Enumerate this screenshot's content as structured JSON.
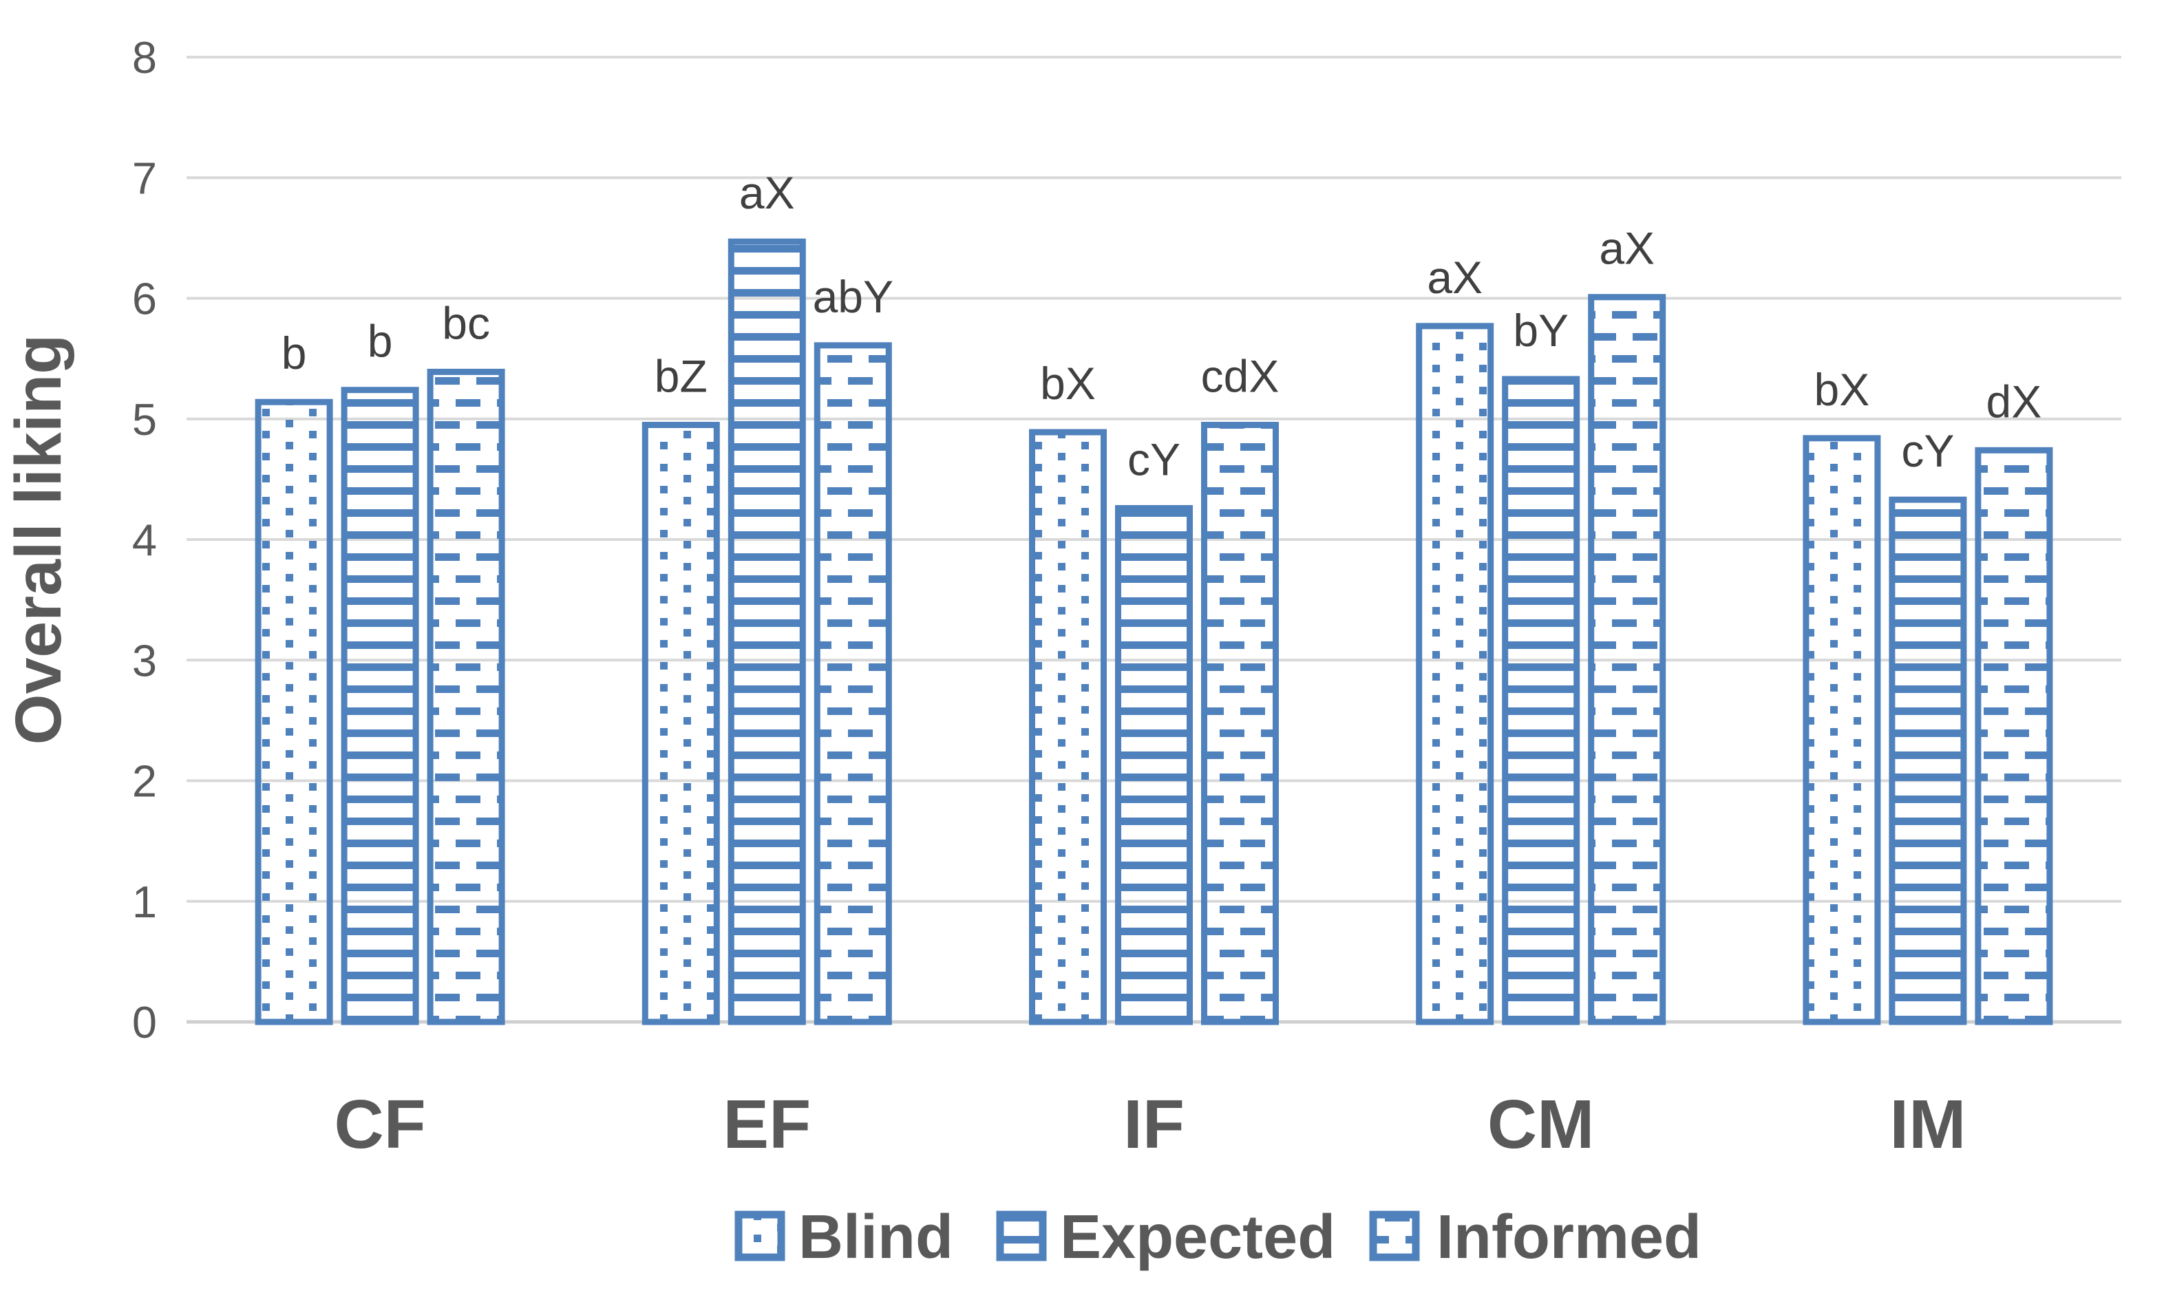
{
  "chart_data": {
    "type": "bar",
    "title": "",
    "xlabel": "",
    "ylabel": "Overall liking",
    "ylim": [
      0,
      8
    ],
    "yticks": [
      0,
      1,
      2,
      3,
      4,
      5,
      6,
      7,
      8
    ],
    "grid": true,
    "legend_position": "bottom",
    "categories": [
      "CF",
      "EF",
      "IF",
      "CM",
      "IM"
    ],
    "series": [
      {
        "name": "Blind",
        "pattern": "dots",
        "values": [
          5.14,
          4.95,
          4.89,
          5.77,
          4.84
        ],
        "bar_labels": [
          "b",
          "bZ",
          "bX",
          "aX",
          "bX"
        ]
      },
      {
        "name": "Expected",
        "pattern": "hlines",
        "values": [
          5.24,
          6.47,
          4.26,
          5.33,
          4.33
        ],
        "bar_labels": [
          "b",
          "aX",
          "cY",
          "bY",
          "cY"
        ]
      },
      {
        "name": "Informed",
        "pattern": "dashes",
        "values": [
          5.39,
          5.61,
          4.95,
          6.01,
          4.74
        ],
        "bar_labels": [
          "bc",
          "abY",
          "cdX",
          "aX",
          "dX"
        ]
      }
    ]
  },
  "colors": {
    "bar_blue": "#4F81BD",
    "gridline": "#D9D9D9",
    "axis_line": "#CFCFCF",
    "tick_text": "#595959",
    "category_text": "#595959",
    "legend_text": "#595959",
    "annotation_text": "#404040",
    "y_title_text": "#595959",
    "background": "#FFFFFF"
  }
}
